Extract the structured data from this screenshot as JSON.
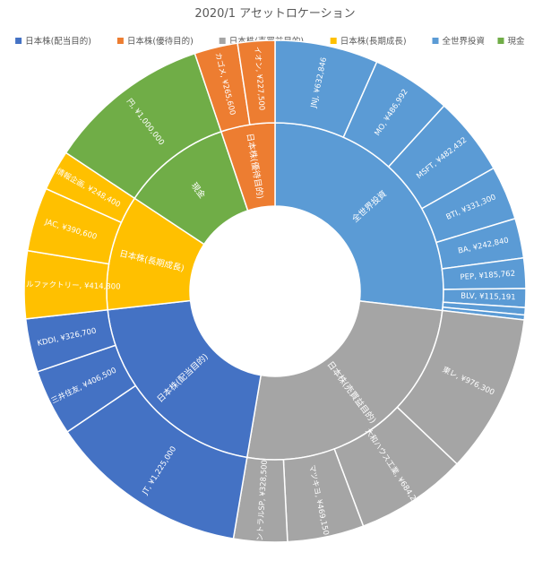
{
  "chart_data": {
    "type": "sunburst",
    "title": "2020/1 アセットロケーション",
    "legend": {
      "position": "top",
      "items": [
        {
          "label": "日本株(配当目的)",
          "color": "#4472c4"
        },
        {
          "label": "日本株(優待目的)",
          "color": "#ed7d31"
        },
        {
          "label": "日本株(売買益目的)",
          "color": "#a5a5a5"
        },
        {
          "label": "日本株(長期成長)",
          "color": "#ffc000"
        },
        {
          "label": "全世界投資",
          "color": "#5b9bd5"
        },
        {
          "label": "現金",
          "color": "#70ad47"
        }
      ]
    },
    "categories": [
      {
        "name": "全世界投資",
        "color": "#5b9bd5",
        "children": [
          {
            "name": "JNJ",
            "label": "JNJ, ¥632,846",
            "value": 632846
          },
          {
            "name": "MO",
            "label": "MO, ¥486,992",
            "value": 486992
          },
          {
            "name": "MSFT",
            "label": "MSFT, ¥482,432",
            "value": 482432
          },
          {
            "name": "BTI",
            "label": "BTI, ¥331,300",
            "value": 331300
          },
          {
            "name": "BA",
            "label": "BA, ¥242,840",
            "value": 242840
          },
          {
            "name": "PEP",
            "label": "PEP, ¥185,762",
            "value": 185762
          },
          {
            "name": "BLV",
            "label": "BLV, ¥115,191",
            "value": 115191
          },
          {
            "name": "",
            "label": "",
            "value": 45000
          },
          {
            "name": "",
            "label": "",
            "value": 30000
          }
        ]
      },
      {
        "name": "日本株(売買益目的)",
        "color": "#a5a5a5",
        "children": [
          {
            "name": "東レ",
            "label": "東レ, ¥976,300",
            "value": 976300
          },
          {
            "name": "大和ハウス工業",
            "label": "大和ハウス工業, ¥684,200",
            "value": 684200
          },
          {
            "name": "マツキヨ",
            "label": "マツキヨ, ¥469,150",
            "value": 469150
          },
          {
            "name": "セントラルSP",
            "label": "セントラルSP, ¥328,500",
            "value": 328500
          }
        ]
      },
      {
        "name": "日本株(配当目的)",
        "color": "#4472c4",
        "children": [
          {
            "name": "JT",
            "label": "JT, ¥1,225,000",
            "value": 1225000
          },
          {
            "name": "三井住友",
            "label": "三井住友, ¥406,500",
            "value": 406500
          },
          {
            "name": "KDDI",
            "label": "KDDI, ¥326,700",
            "value": 326700
          }
        ]
      },
      {
        "name": "日本株(長期成長)",
        "color": "#ffc000",
        "children": [
          {
            "name": "モバイルファクトリー",
            "label": "モバイルファクトリー, ¥414,300",
            "value": 414300
          },
          {
            "name": "JAC",
            "label": "JAC, ¥390,600",
            "value": 390600
          },
          {
            "name": "情報企画",
            "label": "情報企画, ¥248,400",
            "value": 248400
          }
        ]
      },
      {
        "name": "現金",
        "color": "#70ad47",
        "children": [
          {
            "name": "円",
            "label": "円, ¥1,000,000",
            "value": 1000000
          }
        ]
      },
      {
        "name": "日本株(優待目的)",
        "color": "#ed7d31",
        "children": [
          {
            "name": "カゴメ",
            "label": "カゴメ, ¥265,600",
            "value": 265600
          },
          {
            "name": "イオン",
            "label": "イオン, ¥227,500",
            "value": 227500
          }
        ]
      }
    ]
  }
}
